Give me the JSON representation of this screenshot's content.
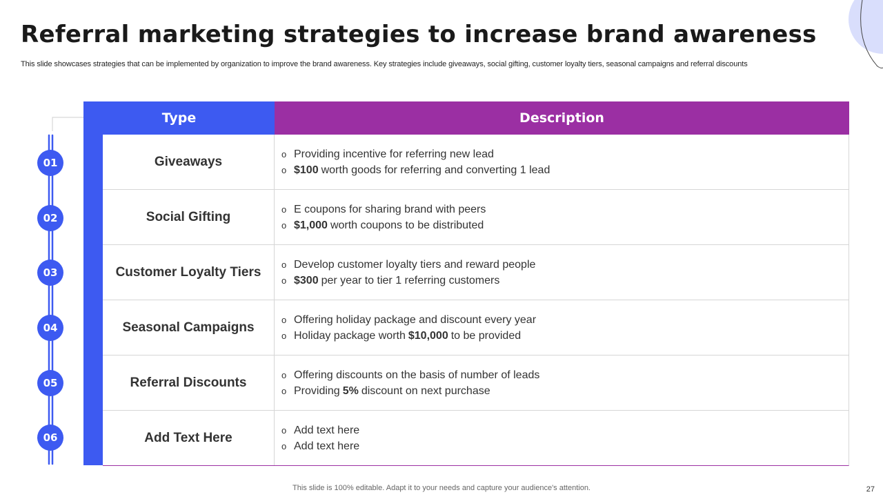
{
  "header": {
    "title": "Referral marketing strategies to increase brand awareness",
    "subtitle": "This slide showcases strategies that can be implemented by organization to improve the brand awareness. Key strategies include giveaways, social gifting, customer loyalty tiers, seasonal campaigns and referral discounts"
  },
  "table": {
    "col_type": "Type",
    "col_desc": "Description",
    "rows": [
      {
        "num": "01",
        "type": "Giveaways",
        "b1": {
          "pre": "",
          "bold": "",
          "post": "Providing incentive for referring new lead"
        },
        "b2": {
          "pre": "",
          "bold": "$100",
          "post": "worth goods for referring and converting 1 lead"
        }
      },
      {
        "num": "02",
        "type": "Social Gifting",
        "b1": {
          "pre": "",
          "bold": "",
          "post": "E coupons for sharing brand with peers"
        },
        "b2": {
          "pre": "",
          "bold": "$1,000",
          "post": "worth coupons to be distributed"
        }
      },
      {
        "num": "03",
        "type": "Customer Loyalty Tiers",
        "b1": {
          "pre": "",
          "bold": "",
          "post": "Develop customer loyalty tiers and reward people"
        },
        "b2": {
          "pre": "",
          "bold": "$300",
          "post": "per year to tier 1 referring customers"
        }
      },
      {
        "num": "04",
        "type": "Seasonal Campaigns",
        "b1": {
          "pre": "",
          "bold": "",
          "post": "Offering holiday package and discount every year"
        },
        "b2": {
          "pre": "Holiday package worth",
          "bold": "$10,000",
          "post": "to be provided"
        }
      },
      {
        "num": "05",
        "type": "Referral Discounts",
        "b1": {
          "pre": "",
          "bold": "",
          "post": "Offering discounts on the basis of number of leads"
        },
        "b2": {
          "pre": "Providing",
          "bold": "5%",
          "post": "discount on next purchase"
        }
      },
      {
        "num": "06",
        "type": "Add Text Here",
        "b1": {
          "pre": "",
          "bold": "",
          "post": "Add text here"
        },
        "b2": {
          "pre": "",
          "bold": "",
          "post": "Add text here"
        }
      }
    ]
  },
  "footer": {
    "note": "This slide is 100% editable. Adapt it to your needs and capture your audience's attention.",
    "page_number": "27"
  },
  "colors": {
    "accent_blue": "#3d5af1",
    "accent_purple": "#9b2fa3",
    "deco_light": "#d9defc"
  },
  "icons": {
    "bullet": "o"
  }
}
